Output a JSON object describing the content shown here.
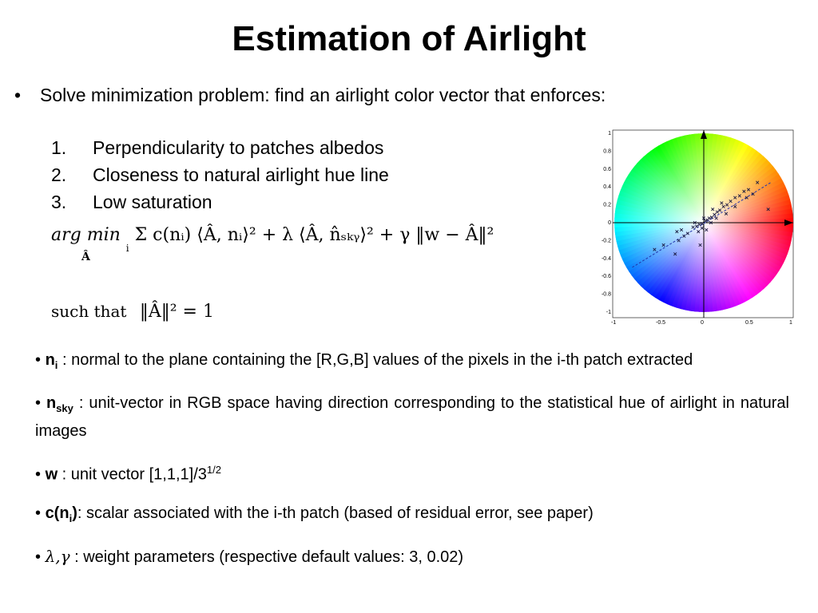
{
  "title": "Estimation of Airlight",
  "intro": "Solve minimization problem: find an airlight color vector that enforces:",
  "criteria": [
    {
      "num": "1.",
      "text": "Perpendicularity to patches albedos"
    },
    {
      "num": "2.",
      "text": "Closeness to natural airlight hue line"
    },
    {
      "num": "3.",
      "text": "Low saturation"
    }
  ],
  "formula": {
    "argmin": "arg min",
    "under": "Â",
    "sum_index": "i",
    "body": "Σ c(nᵢ) ⟨Â, nᵢ⟩² + λ ⟨Â, n̂ₛₖᵧ⟩² + γ ‖w − Â‖²"
  },
  "constraint": {
    "prefix": "such that",
    "expr": "‖Â‖² = 1"
  },
  "definitions": {
    "ni": {
      "sym": "n",
      "sub": "i",
      "text": " : normal to the plane containing the [R,G,B] values of the pixels in the i-th patch extracted"
    },
    "nsky": {
      "sym": "n",
      "sub": "sky",
      "text": " : unit-vector in RGB space having direction corresponding to the statistical hue of airlight in natural images"
    },
    "w": {
      "sym": "w",
      "text": " : unit vector [1,1,1]/3",
      "sup": "1/2"
    },
    "c": {
      "sym": "c(n",
      "sub": "i",
      "close": ")",
      "text": ": scalar associated with the i-th patch (based of residual error, see paper)"
    },
    "params": {
      "sym": "λ,γ",
      "text": " : weight parameters (respective default values: 3, 0.02)"
    }
  },
  "chart_data": {
    "type": "scatter",
    "xlim": [
      -1,
      1
    ],
    "ylim": [
      -1,
      1
    ],
    "x_ticks": [
      "-1",
      "-0.5",
      "0",
      "0.5",
      "1"
    ],
    "y_ticks": [
      "1",
      "0.8",
      "0.6",
      "0.4",
      "0.2",
      "0",
      "-0.2",
      "-0.4",
      "-0.6",
      "-0.8",
      "-1"
    ],
    "background": "hue-saturation color wheel",
    "points": [
      [
        -0.3,
        -0.1
      ],
      [
        -0.25,
        -0.08
      ],
      [
        -0.22,
        -0.15
      ],
      [
        -0.18,
        -0.12
      ],
      [
        -0.28,
        -0.2
      ],
      [
        -0.32,
        -0.35
      ],
      [
        -0.12,
        -0.05
      ],
      [
        -0.08,
        -0.04
      ],
      [
        -0.05,
        -0.02
      ],
      [
        -0.02,
        -0.01
      ],
      [
        0.02,
        0.02
      ],
      [
        0.04,
        0.03
      ],
      [
        0.06,
        0.05
      ],
      [
        0.09,
        0.06
      ],
      [
        0.12,
        0.09
      ],
      [
        0.15,
        0.12
      ],
      [
        0.18,
        0.14
      ],
      [
        0.22,
        0.18
      ],
      [
        0.26,
        0.2
      ],
      [
        0.3,
        0.24
      ],
      [
        0.35,
        0.28
      ],
      [
        0.4,
        0.3
      ],
      [
        0.45,
        0.35
      ],
      [
        0.5,
        0.37
      ],
      [
        0.55,
        0.32
      ],
      [
        0.48,
        0.28
      ],
      [
        0.1,
        0.15
      ],
      [
        0.2,
        0.22
      ],
      [
        0.0,
        0.05
      ],
      [
        -0.02,
        -0.06
      ],
      [
        -0.06,
        -0.1
      ],
      [
        0.08,
        0.0
      ],
      [
        -0.1,
        0.0
      ],
      [
        0.25,
        0.1
      ],
      [
        0.35,
        0.18
      ],
      [
        0.72,
        0.15
      ],
      [
        -0.55,
        -0.3
      ],
      [
        -0.45,
        -0.25
      ],
      [
        0.6,
        0.45
      ],
      [
        0.03,
        -0.08
      ],
      [
        -0.04,
        -0.25
      ],
      [
        0.14,
        0.05
      ]
    ],
    "fit_line": [
      [
        -0.8,
        -0.5
      ],
      [
        0.75,
        0.45
      ]
    ]
  }
}
